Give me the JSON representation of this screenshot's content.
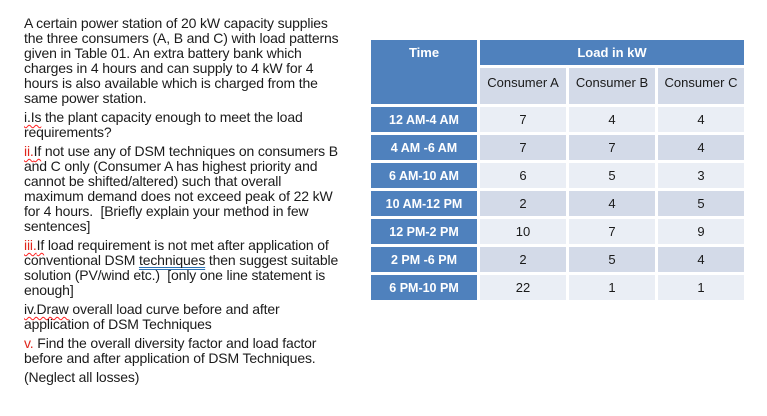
{
  "colors": {
    "header_bg": "#4f81bd",
    "band_dark": "#d3dae8",
    "band_light": "#eaeef5",
    "red": "#e0261c",
    "squiggle": "#ff1f1f",
    "grammar_blue": "#2e74b5",
    "text": "#1b1b1b"
  },
  "problem": {
    "paragraphs": [
      {
        "lines": [
          [
            {
              "t": "A certain power station of 20 kW capacity supplies"
            }
          ],
          [
            {
              "t": "the three consumers (A, B and C) with load patterns"
            }
          ],
          [
            {
              "t": "given in Table 01. An extra battery bank which"
            }
          ],
          [
            {
              "t": "charges in 4 hours and can supply to 4 kW for 4"
            }
          ],
          [
            {
              "t": "hours is also available which is charged from the"
            }
          ],
          [
            {
              "t": "same power station."
            }
          ]
        ]
      },
      {
        "lines": [
          [
            {
              "t": "i.Is",
              "s": "wavy"
            },
            {
              "t": " the plant capacity enough to meet the load"
            }
          ],
          [
            {
              "t": "requirements?"
            }
          ]
        ]
      },
      {
        "lines": [
          [
            {
              "t": "ii.",
              "s": "red-wavy"
            },
            {
              "t": "If",
              "s": "wavy"
            },
            {
              "t": " not use any of DSM techniques on consumers B"
            }
          ],
          [
            {
              "t": "and C only (Consumer A has highest priority and"
            }
          ],
          [
            {
              "t": "cannot be shifted/altered) such that overall"
            }
          ],
          [
            {
              "t": "maximum demand does not exceed peak of 22 kW"
            }
          ],
          [
            {
              "t": "for 4 hours.  [Briefly explain your method in few"
            }
          ],
          [
            {
              "t": "sentences]"
            }
          ]
        ]
      },
      {
        "lines": [
          [
            {
              "t": "iii.",
              "s": "red-wavy"
            },
            {
              "t": "If",
              "s": "wavy"
            },
            {
              "t": " load requirement is not met after application of"
            }
          ],
          [
            {
              "t": "conventional DSM "
            },
            {
              "t": "techniques",
              "s": "blue-double"
            },
            {
              "t": " then suggest suitable"
            }
          ],
          [
            {
              "t": "solution (PV/wind etc.)  [only one line statement is"
            }
          ],
          [
            {
              "t": "enough]"
            }
          ]
        ]
      },
      {
        "lines": [
          [
            {
              "t": "iv.Draw",
              "s": "wavy"
            },
            {
              "t": " overall load curve before and after"
            }
          ],
          [
            {
              "t": "application of DSM Techniques"
            }
          ]
        ]
      },
      {
        "lines": [
          [
            {
              "t": "v.",
              "s": "red"
            },
            {
              "t": " Find the overall diversity factor and load factor"
            }
          ],
          [
            {
              "t": "before and after application of DSM Techniques."
            }
          ]
        ]
      },
      {
        "lines": [
          [
            {
              "t": "(Neglect all losses)"
            }
          ]
        ]
      }
    ]
  },
  "table": {
    "header": {
      "time_label": "Time",
      "load_label": "Load in kW",
      "consumers": [
        "Consumer A",
        "Consumer B",
        "Consumer C"
      ]
    },
    "rows": [
      {
        "time": "12 AM-4 AM",
        "values": [
          7,
          4,
          4
        ]
      },
      {
        "time": "4 AM -6 AM",
        "values": [
          7,
          7,
          4
        ]
      },
      {
        "time": "6 AM-10 AM",
        "values": [
          6,
          5,
          3
        ]
      },
      {
        "time": "10 AM-12 PM",
        "values": [
          2,
          4,
          5
        ]
      },
      {
        "time": "12 PM-2 PM",
        "values": [
          10,
          7,
          9
        ]
      },
      {
        "time": "2 PM -6 PM",
        "values": [
          2,
          5,
          4
        ]
      },
      {
        "time": "6 PM-10 PM",
        "values": [
          22,
          1,
          1
        ]
      }
    ]
  }
}
